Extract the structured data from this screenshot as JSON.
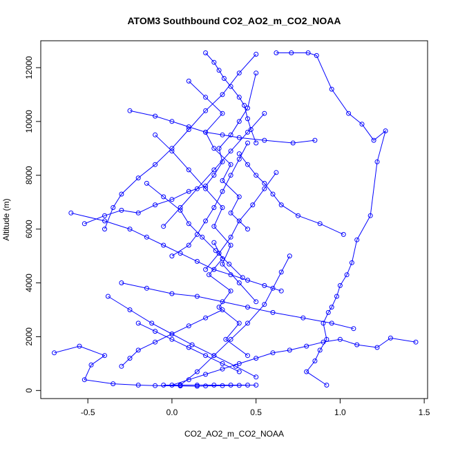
{
  "chart_data": {
    "type": "line",
    "title": "ATOM3 Southbound CO2_AO2_m_CO2_NOAA",
    "xlabel": "CO2_AO2_m_CO2_NOAA",
    "ylabel": "Altitude (m)",
    "xlim": [
      -0.78,
      1.52
    ],
    "ylim": [
      -300,
      13000
    ],
    "x_ticks": [
      -0.5,
      0.0,
      0.5,
      1.0,
      1.5
    ],
    "x_tick_labels": [
      "-0.5",
      "0.0",
      "0.5",
      "1.0",
      "1.5"
    ],
    "y_ticks": [
      0,
      2000,
      4000,
      6000,
      8000,
      10000,
      12000
    ],
    "y_tick_labels": [
      "0",
      "2000",
      "4000",
      "6000",
      "8000",
      "10000",
      "12000"
    ],
    "grid": false,
    "legend": "none",
    "series_color": "#0000ff",
    "marker": "open-circle",
    "series": [
      {
        "x": [
          0.62,
          0.71,
          0.81,
          0.86,
          0.95,
          1.05,
          1.13,
          1.2,
          1.27,
          1.22,
          1.18,
          1.1,
          1.07,
          1.04,
          1.0,
          0.98,
          0.95,
          0.93,
          0.9,
          0.92,
          0.88,
          0.85,
          0.8,
          0.92
        ],
        "y": [
          12550,
          12550,
          12550,
          12450,
          11200,
          10300,
          9900,
          9300,
          9650,
          8500,
          6500,
          5600,
          4750,
          4300,
          3900,
          3500,
          3100,
          2900,
          2500,
          1900,
          1500,
          1100,
          700,
          200
        ]
      },
      {
        "x": [
          -0.7,
          -0.55,
          -0.4,
          -0.48,
          -0.52,
          -0.35,
          -0.2,
          -0.1,
          0.05,
          0.15,
          0.2,
          0.3,
          0.4,
          0.5
        ],
        "y": [
          1400,
          1650,
          1300,
          950,
          400,
          250,
          200,
          180,
          170,
          160,
          170,
          180,
          190,
          200
        ]
      },
      {
        "x": [
          -0.52,
          -0.4,
          -0.3,
          -0.2,
          -0.1,
          0.0,
          0.1,
          0.2,
          0.25,
          0.3,
          0.28,
          0.35,
          0.4,
          0.45,
          0.5
        ],
        "y": [
          6200,
          6500,
          6700,
          6600,
          6900,
          7100,
          7400,
          7600,
          8000,
          8500,
          9000,
          9500,
          10000,
          10500,
          11800
        ]
      },
      {
        "x": [
          1.45,
          1.3,
          1.22,
          1.1,
          1.0,
          0.9,
          0.8,
          0.7,
          0.6,
          0.5,
          0.4,
          0.3,
          0.2,
          0.1,
          0.0
        ],
        "y": [
          1800,
          1950,
          1600,
          1700,
          1900,
          1800,
          1650,
          1500,
          1400,
          1200,
          1000,
          800,
          600,
          400,
          200
        ]
      },
      {
        "x": [
          0.2,
          0.25,
          0.28,
          0.31,
          0.35,
          0.4,
          0.43,
          0.45,
          0.47,
          0.5
        ],
        "y": [
          12550,
          12200,
          11900,
          11600,
          11300,
          10900,
          10600,
          10100,
          9700,
          9200
        ]
      },
      {
        "x": [
          -0.6,
          -0.4,
          -0.25,
          -0.15,
          -0.05,
          0.05,
          0.15,
          0.25,
          0.35,
          0.45,
          0.55,
          0.65
        ],
        "y": [
          6600,
          6300,
          6000,
          5700,
          5400,
          5100,
          4800,
          4500,
          4300,
          4100,
          3900,
          3700
        ]
      },
      {
        "x": [
          -0.25,
          -0.1,
          0.0,
          0.1,
          0.2,
          0.3,
          0.4,
          0.55,
          0.72,
          0.85
        ],
        "y": [
          10400,
          10200,
          10000,
          9800,
          9600,
          9500,
          9400,
          9300,
          9200,
          9300
        ]
      },
      {
        "x": [
          0.5,
          0.4,
          0.3,
          0.2,
          0.1,
          0.0,
          -0.1,
          -0.2,
          -0.3,
          -0.35,
          -0.4
        ],
        "y": [
          12500,
          11800,
          11000,
          10400,
          9700,
          9000,
          8400,
          7900,
          7300,
          6800,
          6000
        ]
      },
      {
        "x": [
          0.05,
          0.15,
          0.25,
          0.35,
          0.45,
          0.55,
          0.6,
          0.65,
          0.7
        ],
        "y": [
          200,
          700,
          1300,
          1900,
          2500,
          3200,
          3800,
          4400,
          5000
        ]
      },
      {
        "x": [
          -0.3,
          -0.15,
          0.0,
          0.15,
          0.3,
          0.45,
          0.6,
          0.78,
          0.95,
          1.08
        ],
        "y": [
          4000,
          3800,
          3600,
          3500,
          3300,
          3100,
          2900,
          2700,
          2500,
          2300
        ]
      },
      {
        "x": [
          0.4,
          0.45,
          0.5,
          0.55,
          0.6,
          0.65,
          0.75,
          0.88,
          1.02
        ],
        "y": [
          8800,
          8400,
          8000,
          7700,
          7300,
          6900,
          6500,
          6200,
          5800
        ]
      },
      {
        "x": [
          -0.2,
          -0.1,
          0.0,
          0.1,
          0.2,
          0.3,
          0.4
        ],
        "y": [
          2500,
          2200,
          1900,
          1600,
          1300,
          1000,
          700
        ]
      },
      {
        "x": [
          0.1,
          0.2,
          0.3,
          0.2,
          0.25,
          0.35,
          0.3,
          0.4,
          0.35,
          0.45
        ],
        "y": [
          11500,
          10900,
          10300,
          9600,
          9000,
          8400,
          7800,
          7200,
          6600,
          6000
        ]
      },
      {
        "x": [
          -0.1,
          0.0,
          0.1,
          0.2,
          0.3,
          0.25,
          0.35,
          0.3,
          0.4,
          0.5
        ],
        "y": [
          9500,
          8900,
          8200,
          7500,
          6800,
          6100,
          5400,
          4700,
          4000,
          3300
        ]
      },
      {
        "x": [
          0.0,
          0.1,
          0.15,
          0.2,
          0.25,
          0.3,
          0.35,
          0.4,
          0.45
        ],
        "y": [
          5000,
          5400,
          5800,
          6300,
          6800,
          7400,
          8000,
          8600,
          9200
        ]
      },
      {
        "x": [
          0.3,
          0.2,
          0.1,
          0.0,
          -0.1,
          -0.2,
          -0.25,
          -0.3
        ],
        "y": [
          3000,
          2700,
          2400,
          2100,
          1800,
          1500,
          1200,
          900
        ]
      },
      {
        "x": [
          0.55,
          0.45,
          0.35,
          0.25,
          0.15,
          0.05,
          -0.05
        ],
        "y": [
          10300,
          9600,
          8900,
          8200,
          7500,
          6800,
          6100
        ]
      },
      {
        "x": [
          -0.05,
          0.05,
          0.15,
          0.25,
          0.35,
          0.45
        ],
        "y": [
          200,
          200,
          200,
          200,
          200,
          200
        ]
      },
      {
        "x": [
          0.25,
          0.3,
          0.22,
          0.35,
          0.28,
          0.4,
          0.32,
          0.45
        ],
        "y": [
          5500,
          4900,
          4300,
          3700,
          3100,
          2500,
          1900,
          1300
        ]
      },
      {
        "x": [
          -0.15,
          -0.05,
          0.05,
          0.1,
          0.18,
          0.26,
          0.34,
          0.42
        ],
        "y": [
          7700,
          7200,
          6700,
          6200,
          5700,
          5200,
          4700,
          4200
        ]
      },
      {
        "x": [
          0.62,
          0.55,
          0.48,
          0.4,
          0.35,
          0.28,
          0.2
        ],
        "y": [
          8100,
          7500,
          6900,
          6300,
          5700,
          5100,
          4500
        ]
      },
      {
        "x": [
          -0.38,
          -0.25,
          -0.12,
          0.0,
          0.12,
          0.25,
          0.38,
          0.5
        ],
        "y": [
          3500,
          3000,
          2500,
          2100,
          1700,
          1300,
          900,
          500
        ]
      }
    ]
  }
}
